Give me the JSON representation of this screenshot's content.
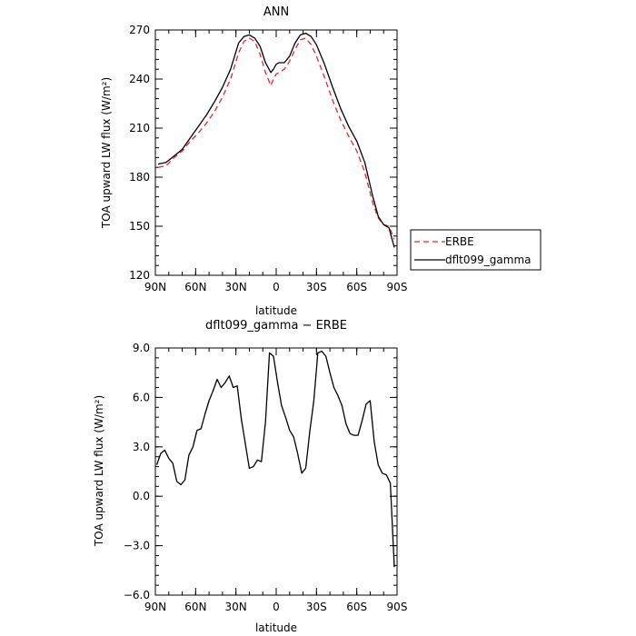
{
  "chart_data": [
    {
      "type": "line",
      "title": "ANN",
      "xlabel": "latitude",
      "ylabel": "TOA upward LW flux (W/m²)",
      "xlim": [
        -90,
        90
      ],
      "ylim": [
        120,
        270
      ],
      "x_ticks": [
        -90,
        -60,
        -30,
        0,
        30,
        60,
        90
      ],
      "x_tick_labels": [
        "90N",
        "60N",
        "30N",
        "0",
        "30S",
        "60S",
        "90S"
      ],
      "y_ticks": [
        120,
        150,
        180,
        210,
        240,
        270
      ],
      "y_tick_labels": [
        "120",
        "150",
        "180",
        "210",
        "240",
        "270"
      ],
      "legend": {
        "placement": "right",
        "entries": [
          "ERBE",
          "dflt099_gamma"
        ]
      },
      "series": [
        {
          "name": "ERBE",
          "color": "#e8262a",
          "dash": "dashed",
          "x": [
            -88,
            -82,
            -76,
            -70,
            -64,
            -58,
            -52,
            -46,
            -40,
            -34,
            -28,
            -24,
            -20,
            -16,
            -12,
            -8,
            -4,
            -2,
            0,
            2,
            6,
            10,
            14,
            18,
            22,
            26,
            30,
            36,
            42,
            48,
            54,
            60,
            66,
            72,
            76,
            80,
            84,
            88
          ],
          "values": [
            186,
            187,
            192,
            196,
            202,
            207,
            213,
            220,
            229,
            240,
            256,
            263,
            265,
            263,
            255,
            244,
            236,
            240,
            243,
            244,
            246,
            251,
            258,
            264,
            265,
            261,
            254,
            241,
            227,
            215,
            205,
            196,
            183,
            164,
            155,
            151,
            150,
            142
          ]
        },
        {
          "name": "dflt099_gamma",
          "color": "#000000",
          "dash": "solid",
          "x": [
            -88,
            -82,
            -76,
            -70,
            -64,
            -58,
            -52,
            -46,
            -40,
            -34,
            -28,
            -24,
            -20,
            -16,
            -12,
            -8,
            -4,
            -2,
            0,
            2,
            6,
            10,
            14,
            18,
            22,
            26,
            30,
            36,
            42,
            48,
            54,
            60,
            66,
            72,
            76,
            80,
            84,
            88
          ],
          "values": [
            188,
            189,
            193,
            197,
            204,
            211,
            218,
            226,
            235,
            246,
            262,
            266,
            267,
            265,
            260,
            250,
            244,
            246,
            249,
            250,
            250,
            254,
            262,
            267,
            268,
            266,
            261,
            249,
            235,
            222,
            211,
            202,
            189,
            168,
            156,
            151,
            149,
            137
          ]
        }
      ]
    },
    {
      "type": "line",
      "title": "dflt099_gamma − ERBE",
      "xlabel": "latitude",
      "ylabel": "TOA upward LW flux (W/m²)",
      "xlim": [
        -90,
        90
      ],
      "ylim": [
        -6,
        9
      ],
      "x_ticks": [
        -90,
        -60,
        -30,
        0,
        30,
        60,
        90
      ],
      "x_tick_labels": [
        "90N",
        "60N",
        "30N",
        "0",
        "30S",
        "60S",
        "90S"
      ],
      "y_ticks": [
        -6,
        -3,
        0,
        3,
        6,
        9
      ],
      "y_tick_labels": [
        "−6.0",
        "−3.0",
        "0.0",
        "3.0",
        "6.0",
        "9.0"
      ],
      "series": [
        {
          "color": "#000000",
          "dash": "solid",
          "x": [
            -89,
            -86,
            -83,
            -80,
            -77,
            -74,
            -71,
            -68,
            -65,
            -62,
            -59,
            -56,
            -53,
            -50,
            -47,
            -44,
            -41,
            -38,
            -35,
            -32,
            -29,
            -26,
            -23,
            -20,
            -17,
            -14,
            -11,
            -8,
            -5,
            -2,
            1,
            4,
            7,
            10,
            13,
            16,
            19,
            22,
            25,
            28,
            31,
            34,
            37,
            40,
            43,
            46,
            49,
            52,
            55,
            58,
            61,
            64,
            67,
            70,
            73,
            76,
            79,
            82,
            85,
            88
          ],
          "values": [
            1.9,
            2.6,
            2.8,
            2.3,
            2.0,
            0.9,
            0.7,
            1.0,
            2.5,
            3.0,
            4.0,
            4.1,
            5.0,
            5.8,
            6.4,
            7.1,
            6.6,
            6.9,
            7.3,
            6.6,
            6.7,
            4.7,
            3.2,
            1.7,
            1.8,
            2.2,
            2.1,
            4.5,
            8.7,
            8.5,
            6.9,
            5.5,
            4.8,
            4.0,
            3.6,
            2.6,
            1.4,
            1.7,
            3.9,
            5.8,
            8.7,
            8.8,
            8.5,
            7.5,
            6.6,
            6.1,
            5.5,
            4.4,
            3.8,
            3.7,
            3.7,
            4.6,
            5.6,
            5.8,
            3.3,
            1.9,
            1.4,
            1.3,
            0.8,
            -4.3
          ]
        }
      ]
    }
  ]
}
